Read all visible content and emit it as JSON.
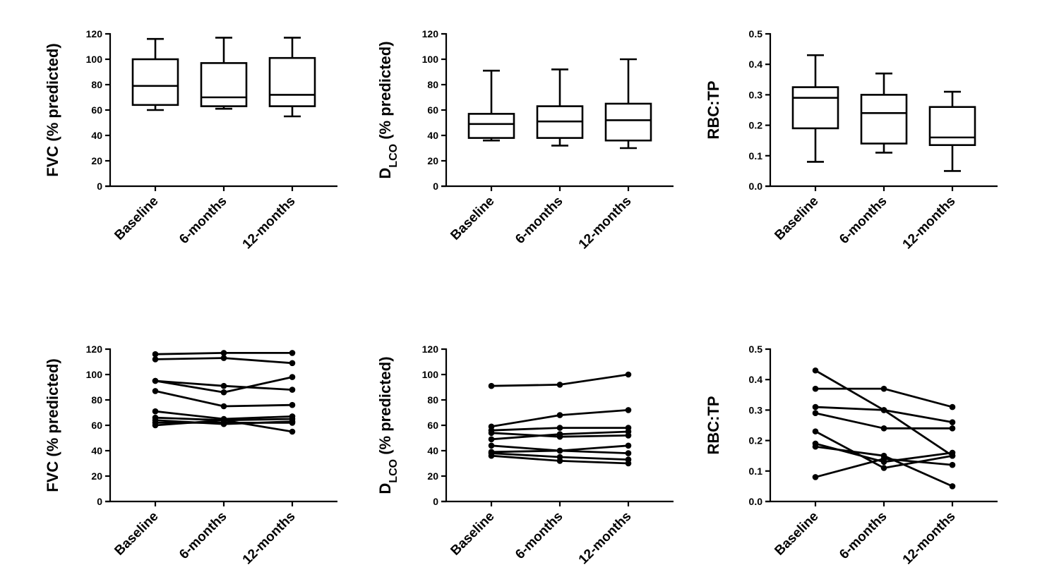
{
  "figure": {
    "categories": [
      "Baseline",
      "6-months",
      "12-months"
    ],
    "colors": {
      "ink": "#000000",
      "background": "#ffffff"
    }
  },
  "chart_data": [
    {
      "id": "fvc-box",
      "type": "box",
      "ylabel_main": "FVC (% predicted)",
      "ylabel_sub": "",
      "ylabel_tail": "",
      "ylim": [
        0,
        120
      ],
      "yticks": [
        0,
        20,
        40,
        60,
        80,
        100,
        120
      ],
      "ytick_labels": [
        "0",
        "20",
        "40",
        "60",
        "80",
        "100",
        "120"
      ],
      "categories": [
        "Baseline",
        "6-months",
        "12-months"
      ],
      "boxes": [
        {
          "min": 60,
          "q1": 64,
          "median": 79,
          "q3": 100,
          "max": 116
        },
        {
          "min": 61,
          "q1": 63,
          "median": 70,
          "q3": 97,
          "max": 117
        },
        {
          "min": 55,
          "q1": 63,
          "median": 72,
          "q3": 101,
          "max": 117
        }
      ]
    },
    {
      "id": "dlco-box",
      "type": "box",
      "ylabel_main": "D",
      "ylabel_sub": "LCO",
      "ylabel_tail": " (% predicted)",
      "ylim": [
        0,
        120
      ],
      "yticks": [
        0,
        20,
        40,
        60,
        80,
        100,
        120
      ],
      "ytick_labels": [
        "0",
        "20",
        "40",
        "60",
        "80",
        "100",
        "120"
      ],
      "categories": [
        "Baseline",
        "6-months",
        "12-months"
      ],
      "boxes": [
        {
          "min": 36,
          "q1": 38,
          "median": 49,
          "q3": 57,
          "max": 91
        },
        {
          "min": 32,
          "q1": 38,
          "median": 51,
          "q3": 63,
          "max": 92
        },
        {
          "min": 30,
          "q1": 36,
          "median": 52,
          "q3": 65,
          "max": 100
        }
      ]
    },
    {
      "id": "rbc-box",
      "type": "box",
      "ylabel_main": "RBC:TP",
      "ylabel_sub": "",
      "ylabel_tail": "",
      "ylim": [
        0,
        0.5
      ],
      "yticks": [
        0,
        0.1,
        0.2,
        0.3,
        0.4,
        0.5
      ],
      "ytick_labels": [
        "0.0",
        "0.1",
        "0.2",
        "0.3",
        "0.4",
        "0.5"
      ],
      "categories": [
        "Baseline",
        "6-months",
        "12-months"
      ],
      "boxes": [
        {
          "min": 0.08,
          "q1": 0.19,
          "median": 0.29,
          "q3": 0.325,
          "max": 0.43
        },
        {
          "min": 0.11,
          "q1": 0.14,
          "median": 0.24,
          "q3": 0.3,
          "max": 0.37
        },
        {
          "min": 0.05,
          "q1": 0.135,
          "median": 0.16,
          "q3": 0.26,
          "max": 0.31
        }
      ]
    },
    {
      "id": "fvc-lines",
      "type": "line",
      "ylabel_main": "FVC (% predicted)",
      "ylabel_sub": "",
      "ylabel_tail": "",
      "ylim": [
        0,
        120
      ],
      "yticks": [
        0,
        20,
        40,
        60,
        80,
        100,
        120
      ],
      "ytick_labels": [
        "0",
        "20",
        "40",
        "60",
        "80",
        "100",
        "120"
      ],
      "categories": [
        "Baseline",
        "6-months",
        "12-months"
      ],
      "series": [
        [
          116,
          117,
          117
        ],
        [
          112,
          113,
          109
        ],
        [
          95,
          91,
          88
        ],
        [
          95,
          86,
          98
        ],
        [
          87,
          75,
          76
        ],
        [
          71,
          65,
          67
        ],
        [
          66,
          64,
          65
        ],
        [
          64,
          61,
          63
        ],
        [
          62,
          62,
          62
        ],
        [
          60,
          64,
          55
        ]
      ]
    },
    {
      "id": "dlco-lines",
      "type": "line",
      "ylabel_main": "D",
      "ylabel_sub": "LCO",
      "ylabel_tail": " (% predicted)",
      "ylim": [
        0,
        120
      ],
      "yticks": [
        0,
        20,
        40,
        60,
        80,
        100,
        120
      ],
      "ytick_labels": [
        "0",
        "20",
        "40",
        "60",
        "80",
        "100",
        "120"
      ],
      "categories": [
        "Baseline",
        "6-months",
        "12-months"
      ],
      "series": [
        [
          91,
          92,
          100
        ],
        [
          59,
          68,
          72
        ],
        [
          56,
          58,
          58
        ],
        [
          54,
          51,
          52
        ],
        [
          49,
          53,
          55
        ],
        [
          44,
          40,
          44
        ],
        [
          39,
          40,
          38
        ],
        [
          38,
          35,
          33
        ],
        [
          36,
          32,
          30
        ]
      ]
    },
    {
      "id": "rbc-lines",
      "type": "line",
      "ylabel_main": "RBC:TP",
      "ylabel_sub": "",
      "ylabel_tail": "",
      "ylim": [
        0,
        0.5
      ],
      "yticks": [
        0,
        0.1,
        0.2,
        0.3,
        0.4,
        0.5
      ],
      "ytick_labels": [
        "0.0",
        "0.1",
        "0.2",
        "0.3",
        "0.4",
        "0.5"
      ],
      "categories": [
        "Baseline",
        "6-months",
        "12-months"
      ],
      "series": [
        [
          0.43,
          0.3,
          0.15
        ],
        [
          0.37,
          0.37,
          0.31
        ],
        [
          0.31,
          0.3,
          0.26
        ],
        [
          0.29,
          0.24,
          0.24
        ],
        [
          0.23,
          0.11,
          0.15
        ],
        [
          0.19,
          0.13,
          0.16
        ],
        [
          0.18,
          0.15,
          0.05
        ],
        [
          0.08,
          0.14,
          0.12
        ]
      ]
    }
  ]
}
